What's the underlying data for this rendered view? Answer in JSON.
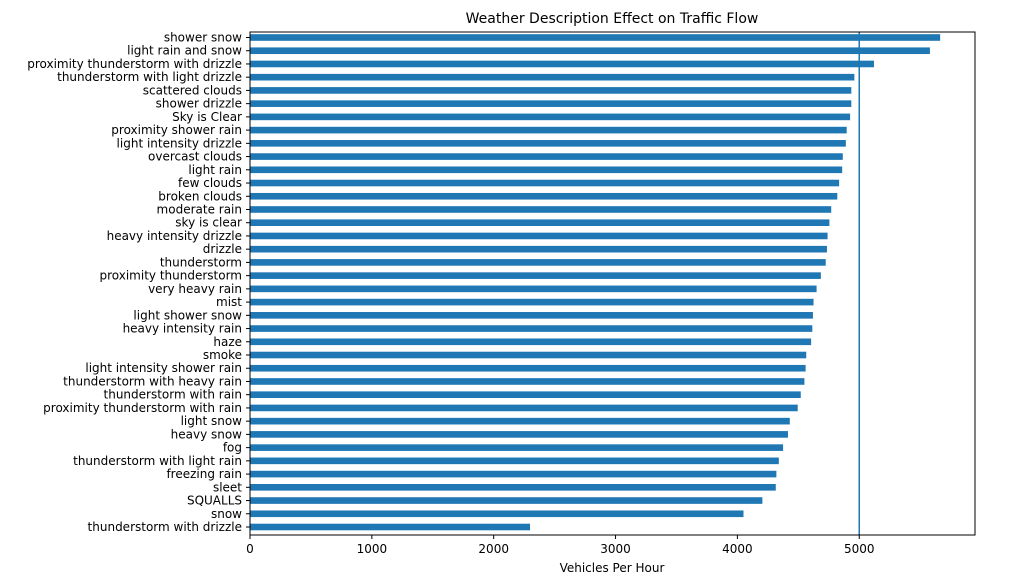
{
  "chart_data": {
    "type": "bar",
    "orientation": "horizontal",
    "title": "Weather Description Effect on Traffic Flow",
    "xlabel": "Vehicles Per Hour",
    "ylabel": "",
    "xlim": [
      0,
      5950
    ],
    "x_ticks": [
      0,
      1000,
      2000,
      3000,
      4000,
      5000
    ],
    "reference_line": 5000,
    "bar_color": "#1f77b4",
    "line_color": "#1f77b4",
    "grid": false,
    "categories": [
      "shower snow",
      "light rain and snow",
      "proximity thunderstorm with drizzle",
      "thunderstorm with light drizzle",
      "scattered clouds",
      "shower drizzle",
      "Sky is Clear",
      "proximity shower rain",
      "light intensity drizzle",
      "overcast clouds",
      "light rain",
      "few clouds",
      "broken clouds",
      "moderate rain",
      "sky is clear",
      "heavy intensity drizzle",
      "drizzle",
      "thunderstorm",
      "proximity thunderstorm",
      "very heavy rain",
      "mist",
      "light shower snow",
      "heavy intensity rain",
      "haze",
      "smoke",
      "light intensity shower rain",
      "thunderstorm with heavy rain",
      "thunderstorm with rain",
      "proximity thunderstorm with rain",
      "light snow",
      "heavy snow",
      "fog",
      "thunderstorm with light rain",
      "freezing rain",
      "sleet",
      "SQUALLS",
      "snow",
      "thunderstorm with drizzle"
    ],
    "values": [
      5664,
      5580,
      5121,
      4960,
      4935,
      4935,
      4925,
      4897,
      4890,
      4865,
      4860,
      4835,
      4820,
      4770,
      4755,
      4740,
      4735,
      4725,
      4685,
      4650,
      4625,
      4620,
      4615,
      4605,
      4565,
      4560,
      4550,
      4520,
      4495,
      4430,
      4415,
      4375,
      4340,
      4320,
      4315,
      4205,
      4050,
      2298
    ]
  }
}
